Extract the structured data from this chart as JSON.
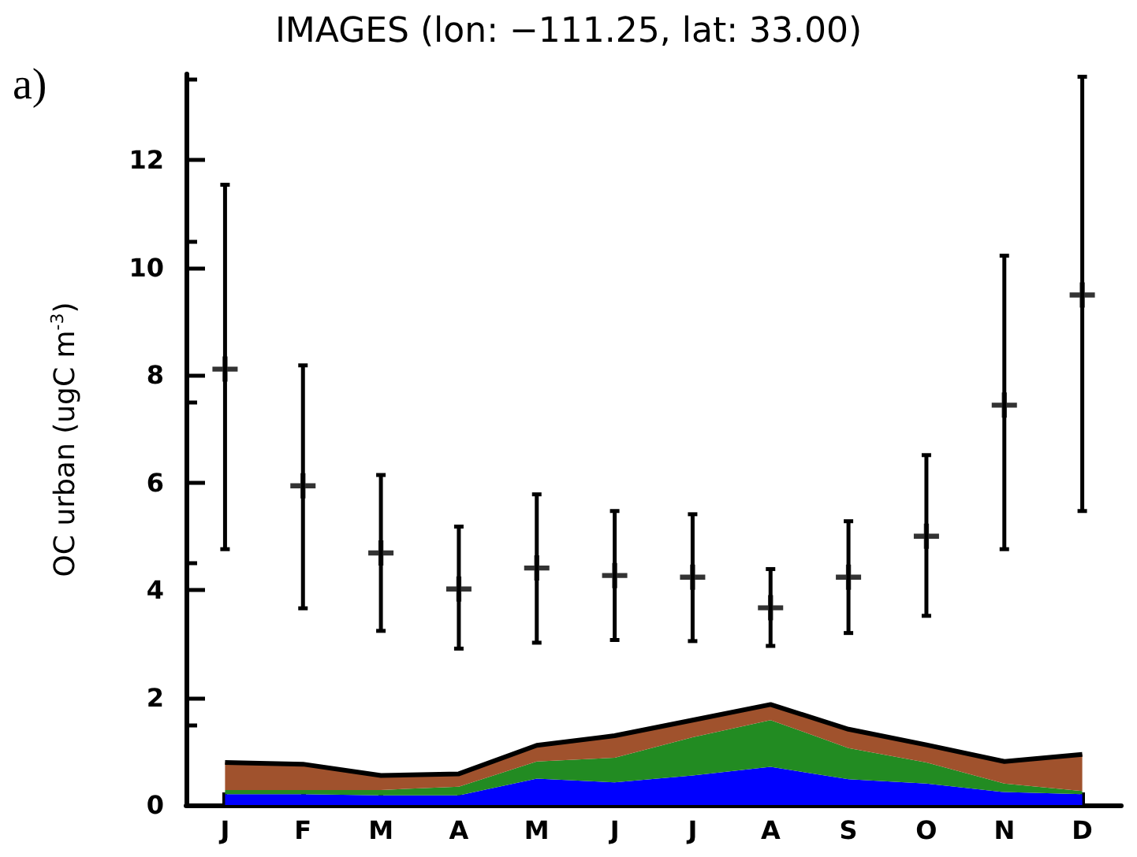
{
  "chart_data": {
    "type": "scatter",
    "title": "IMAGES (lon: −111.25, lat: 33.00)",
    "ylabel": "OC urban (ugC m$^{-3}$)",
    "annotations": [
      "a)"
    ],
    "categories": [
      "J",
      "F",
      "M",
      "A",
      "M",
      "J",
      "J",
      "A",
      "S",
      "O",
      "N",
      "D"
    ],
    "ylim": [
      0,
      13.6
    ],
    "yticks": [
      0,
      2,
      4,
      6,
      8,
      10,
      12
    ],
    "stacked": true,
    "grid": false,
    "series": [
      {
        "type": "area",
        "color": "#0000ff",
        "values": [
          0.2,
          0.2,
          0.18,
          0.18,
          0.49,
          0.42,
          0.55,
          0.71,
          0.48,
          0.4,
          0.24,
          0.2
        ]
      },
      {
        "type": "area",
        "color": "#228b22",
        "values": [
          0.08,
          0.08,
          0.1,
          0.16,
          0.32,
          0.46,
          0.71,
          0.87,
          0.58,
          0.39,
          0.16,
          0.06
        ]
      },
      {
        "type": "area",
        "color": "#a0522d",
        "values": [
          0.51,
          0.48,
          0.27,
          0.24,
          0.3,
          0.41,
          0.32,
          0.29,
          0.35,
          0.33,
          0.41,
          0.68
        ]
      },
      {
        "color": "#000000",
        "marker": "cross",
        "values": [
          8.11,
          5.94,
          4.69,
          4.02,
          4.41,
          4.27,
          4.24,
          3.67,
          4.24,
          5.0,
          7.44,
          9.49
        ],
        "errors": [
          [
            4.76,
            11.54
          ],
          [
            3.66,
            8.18
          ],
          [
            3.24,
            6.14
          ],
          [
            2.91,
            5.18
          ],
          [
            3.02,
            5.78
          ],
          [
            3.07,
            5.47
          ],
          [
            3.05,
            5.41
          ],
          [
            2.96,
            4.39
          ],
          [
            3.2,
            5.28
          ],
          [
            3.52,
            6.51
          ],
          [
            4.76,
            10.22
          ],
          [
            5.47,
            13.55
          ]
        ]
      }
    ]
  }
}
